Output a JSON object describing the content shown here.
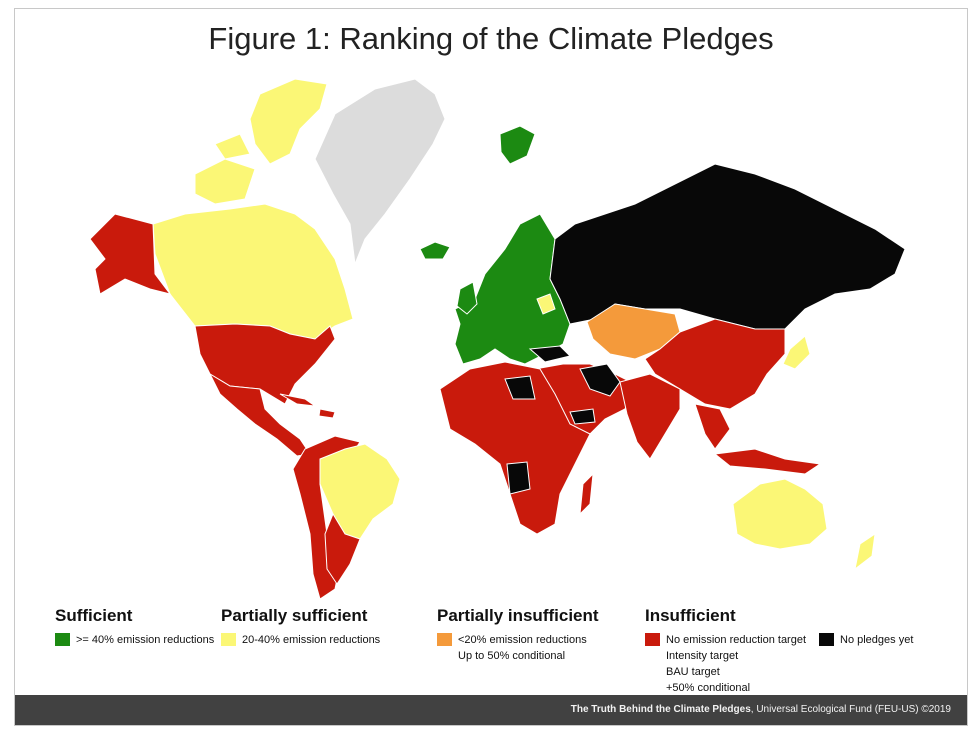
{
  "title": "Figure 1: Ranking of the Climate Pledges",
  "colors": {
    "sufficient": "#1c8a12",
    "partially_sufficient": "#fbf776",
    "partially_insufficient": "#f49a3b",
    "insufficient": "#c91a0c",
    "no_pledge": "#080808",
    "no_data": "#dcdcdc"
  },
  "legend": {
    "sufficient": {
      "heading": "Sufficient",
      "items": [
        ">= 40% emission reductions"
      ]
    },
    "partially_sufficient": {
      "heading": "Partially sufficient",
      "items": [
        "20-40% emission reductions"
      ]
    },
    "partially_insufficient": {
      "heading": "Partially insufficient",
      "items": [
        "<20% emission reductions",
        "Up to 50% conditional"
      ]
    },
    "insufficient": {
      "heading": "Insufficient",
      "items": [
        "No emission reduction target",
        "Intensity target",
        "BAU target",
        "+50% conditional"
      ]
    },
    "no_pledge": {
      "label": "No pledges yet"
    }
  },
  "footer": {
    "bold": "The Truth Behind the Climate Pledges",
    "rest": ", Universal Ecological Fund (FEU-US) ©2019"
  }
}
